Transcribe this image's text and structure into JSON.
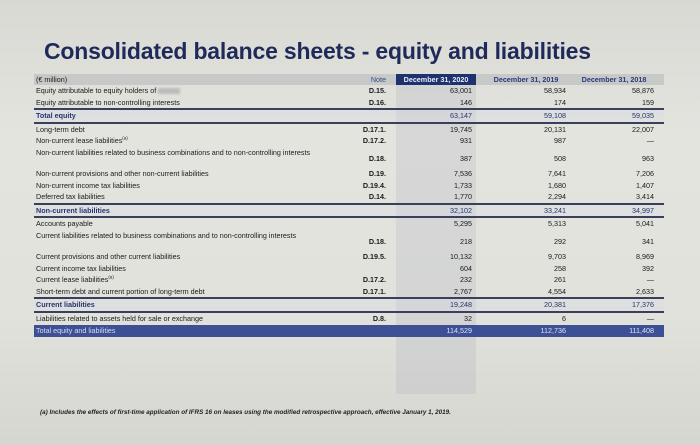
{
  "title": "Consolidated balance sheets - equity and liabilities",
  "table": {
    "unit_label": "(€ million)",
    "columns": {
      "note": "Note",
      "c2020": "December 31, 2020",
      "c2019": "December 31, 2019",
      "c2018": "December 31, 2018"
    },
    "rows": [
      {
        "label": "Equity attributable to equity holders of",
        "note": "D.15.",
        "c2020": "63,001",
        "c2019": "58,934",
        "c2018": "58,876",
        "type": "normal"
      },
      {
        "label": "Equity attributable to non-controlling interests",
        "note": "D.16.",
        "c2020": "146",
        "c2019": "174",
        "c2018": "159",
        "type": "normal"
      },
      {
        "label": "Total equity",
        "note": "",
        "c2020": "63,147",
        "c2019": "59,108",
        "c2018": "59,035",
        "type": "subtotal"
      },
      {
        "label": "Long-term debt",
        "note": "D.17.1.",
        "c2020": "19,745",
        "c2019": "20,131",
        "c2018": "22,007",
        "type": "normal"
      },
      {
        "label": "Non-current lease liabilities",
        "sup": "(a)",
        "note": "D.17.2.",
        "c2020": "931",
        "c2019": "987",
        "c2018": "—",
        "type": "normal"
      },
      {
        "label": "Non-current liabilities related to business combinations and to non-controlling interests",
        "note": "D.18.",
        "c2020": "387",
        "c2019": "508",
        "c2018": "963",
        "type": "tall"
      },
      {
        "label": "Non-current provisions and other non-current liabilities",
        "note": "D.19.",
        "c2020": "7,536",
        "c2019": "7,641",
        "c2018": "7,206",
        "type": "normal"
      },
      {
        "label": "Non-current income tax liabilities",
        "note": "D.19.4.",
        "c2020": "1,733",
        "c2019": "1,680",
        "c2018": "1,407",
        "type": "normal"
      },
      {
        "label": "Deferred tax liabilities",
        "note": "D.14.",
        "c2020": "1,770",
        "c2019": "2,294",
        "c2018": "3,414",
        "type": "normal"
      },
      {
        "label": "Non-current liabilities",
        "note": "",
        "c2020": "32,102",
        "c2019": "33,241",
        "c2018": "34,997",
        "type": "subtotal"
      },
      {
        "label": "Accounts payable",
        "note": "",
        "c2020": "5,295",
        "c2019": "5,313",
        "c2018": "5,041",
        "type": "normal"
      },
      {
        "label": "Current liabilities related to business combinations and to non-controlling interests",
        "note": "D.18.",
        "c2020": "218",
        "c2019": "292",
        "c2018": "341",
        "type": "tall"
      },
      {
        "label": "Current provisions and other current liabilities",
        "note": "D.19.5.",
        "c2020": "10,132",
        "c2019": "9,703",
        "c2018": "8,969",
        "type": "normal"
      },
      {
        "label": "Current income tax liabilities",
        "note": "",
        "c2020": "604",
        "c2019": "258",
        "c2018": "392",
        "type": "normal"
      },
      {
        "label": "Current lease liabilities",
        "sup": "(a)",
        "note": "D.17.2.",
        "c2020": "232",
        "c2019": "261",
        "c2018": "—",
        "type": "normal"
      },
      {
        "label": "Short-term debt and current portion of long-term debt",
        "note": "D.17.1.",
        "c2020": "2,767",
        "c2019": "4,554",
        "c2018": "2,633",
        "type": "normal"
      },
      {
        "label": "Current liabilities",
        "note": "",
        "c2020": "19,248",
        "c2019": "20,381",
        "c2018": "17,376",
        "type": "subtotal"
      },
      {
        "label": "Liabilities related to assets held for sale or exchange",
        "note": "D.8.",
        "c2020": "32",
        "c2019": "6",
        "c2018": "—",
        "type": "normal"
      },
      {
        "label": "Total equity and liabilities",
        "note": "",
        "c2020": "114,529",
        "c2019": "112,736",
        "c2018": "111,408",
        "type": "total"
      }
    ]
  },
  "footnote": "(a) Includes the effects of first-time application of IFRS 16 on leases using the modified retrospective approach, effective January 1, 2019.",
  "colors": {
    "title": "#1f2a5a",
    "header_highlight": "#1f3270",
    "total_row": "#3d4f95",
    "subtotal_text": "#27346e"
  }
}
